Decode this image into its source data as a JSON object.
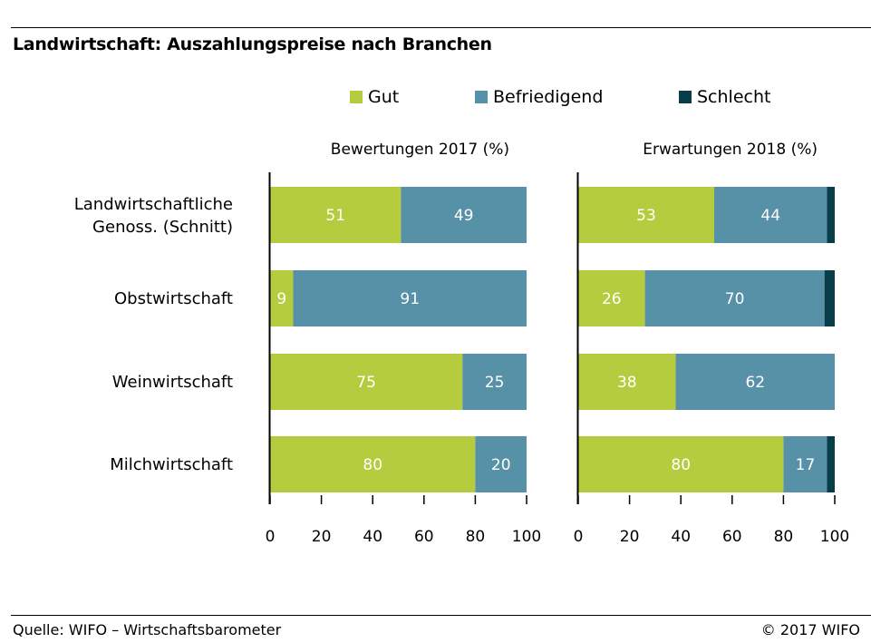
{
  "title": "Landwirtschaft: Auszahlungspreise nach Branchen",
  "source": "Quelle: WIFO – Wirtschaftsbarometer",
  "copyright": "© 2017 WIFO",
  "colors": {
    "gut": "#b5cc3e",
    "befriedigend": "#5791a8",
    "schlecht": "#0a3d4a"
  },
  "chart_data": {
    "type": "bar",
    "orientation": "horizontal",
    "stacked": true,
    "legend": [
      "Gut",
      "Befriedigend",
      "Schlecht"
    ],
    "legend_position": "top",
    "categories": [
      "Landwirtschaftliche\nGenoss. (Schnitt)",
      "Obstwirtschaft",
      "Weinwirtschaft",
      "Milchwirtschaft"
    ],
    "xlim": [
      0,
      100
    ],
    "ticks": [
      0,
      20,
      40,
      60,
      80,
      100
    ],
    "grid": false,
    "panels": [
      {
        "title": "Bewertungen 2017 (%)",
        "series": [
          {
            "name": "Gut",
            "values": [
              51,
              9,
              75,
              80
            ]
          },
          {
            "name": "Befriedigend",
            "values": [
              49,
              91,
              25,
              20
            ]
          },
          {
            "name": "Schlecht",
            "values": [
              0,
              0,
              0,
              0
            ]
          }
        ]
      },
      {
        "title": "Erwartungen 2018 (%)",
        "series": [
          {
            "name": "Gut",
            "values": [
              53,
              26,
              38,
              80
            ]
          },
          {
            "name": "Befriedigend",
            "values": [
              44,
              70,
              62,
              17
            ]
          },
          {
            "name": "Schlecht",
            "values": [
              3,
              4,
              0,
              3
            ]
          }
        ]
      }
    ]
  }
}
